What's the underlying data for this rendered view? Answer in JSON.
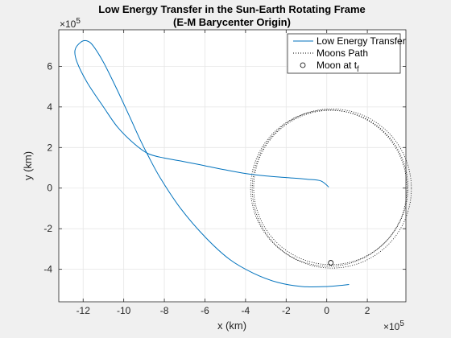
{
  "chart_data": {
    "type": "line",
    "title_line1": "Low Energy Transfer in the Sun-Earth Rotating Frame",
    "title_line2": "(E-M Barycenter Origin)",
    "xlabel": "x (km)",
    "ylabel": "y (km)",
    "x_multiplier": "×10",
    "y_multiplier": "×10",
    "multiplier_exponent": "5",
    "units_scale": 100000,
    "xlim": [
      -13.2,
      3.9
    ],
    "ylim": [
      -5.6,
      7.8
    ],
    "xticks": [
      -12,
      -10,
      -8,
      -6,
      -4,
      -2,
      0,
      2
    ],
    "yticks": [
      -4,
      -2,
      0,
      2,
      4,
      6
    ],
    "xtick_labels": [
      "-12",
      "-10",
      "-8",
      "-6",
      "-4",
      "-2",
      "0",
      "2"
    ],
    "ytick_labels": [
      "-4",
      "-2",
      "0",
      "2",
      "4",
      "6"
    ],
    "grid": true,
    "legend_position": "top-right",
    "legend": {
      "transfer": "Low Energy Transfer",
      "moon_path": "Moons Path",
      "moon_tf": "Moon at t",
      "moon_tf_sub": "f"
    },
    "series": [
      {
        "name": "Low Energy Transfer",
        "color": "#0072bd",
        "style": "solid",
        "points": [
          [
            0.1,
            0.05
          ],
          [
            -0.3,
            0.36
          ],
          [
            -1.0,
            0.44
          ],
          [
            -2.0,
            0.52
          ],
          [
            -3.0,
            0.6
          ],
          [
            -4.0,
            0.72
          ],
          [
            -5.0,
            0.9
          ],
          [
            -6.0,
            1.1
          ],
          [
            -7.0,
            1.3
          ],
          [
            -8.0,
            1.48
          ],
          [
            -8.8,
            1.7
          ],
          [
            -9.5,
            2.2
          ],
          [
            -10.3,
            3.0
          ],
          [
            -11.0,
            4.0
          ],
          [
            -11.8,
            5.2
          ],
          [
            -12.3,
            6.2
          ],
          [
            -12.4,
            6.8
          ],
          [
            -12.1,
            7.2
          ],
          [
            -11.8,
            7.25
          ],
          [
            -11.5,
            7.0
          ],
          [
            -11.0,
            6.2
          ],
          [
            -10.4,
            5.0
          ],
          [
            -9.7,
            3.5
          ],
          [
            -9.2,
            2.4
          ],
          [
            -8.8,
            1.6
          ],
          [
            -8.2,
            0.5
          ],
          [
            -7.2,
            -1.0
          ],
          [
            -6.0,
            -2.4
          ],
          [
            -4.8,
            -3.5
          ],
          [
            -3.6,
            -4.2
          ],
          [
            -2.4,
            -4.65
          ],
          [
            -1.2,
            -4.85
          ],
          [
            0.0,
            -4.85
          ],
          [
            0.8,
            -4.78
          ],
          [
            1.1,
            -4.75
          ]
        ]
      },
      {
        "name": "Moons Path",
        "color": "#000000",
        "style": "dotted",
        "centers": [
          [
            0.1,
            0.0
          ],
          [
            0.2,
            0.03
          ],
          [
            0.25,
            -0.02
          ]
        ],
        "radii": [
          3.85,
          3.8,
          3.92
        ]
      }
    ],
    "moon_at_tf": {
      "x": 0.2,
      "y": -3.68,
      "color": "#000000"
    }
  }
}
